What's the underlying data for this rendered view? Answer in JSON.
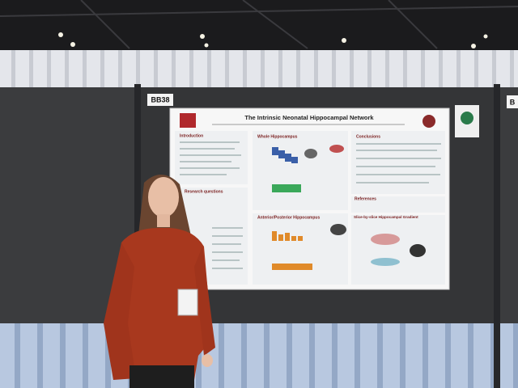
{
  "sign": {
    "label": "BB38",
    "next_label": "B"
  },
  "poster": {
    "title": "The Intrinsic Neonatal Hippocampal Network",
    "sections": [
      "Introduction",
      "Research questions",
      "Whole Hippocampus",
      "Anterior/Posterior Hippocampus",
      "Slice-by-slice Hippocampal Gradient",
      "Conclusions",
      "References"
    ]
  }
}
